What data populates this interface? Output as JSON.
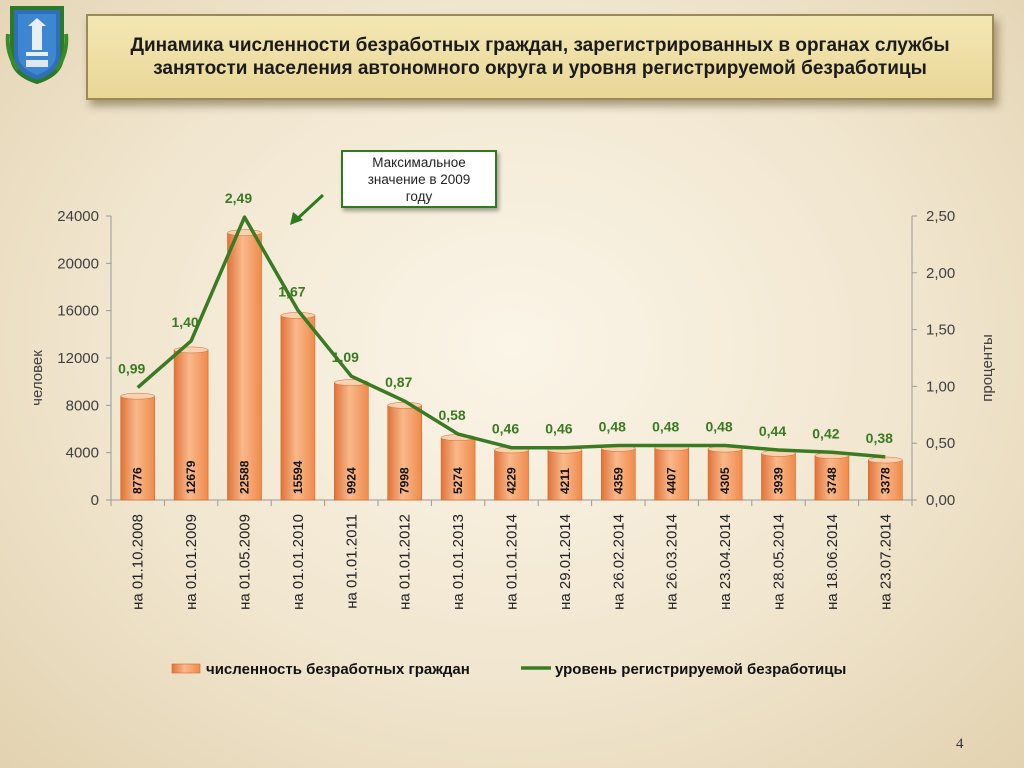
{
  "title": "Динамика численности безработных граждан, зарегистрированных в органах службы занятости населения автономного округа и уровня регистрируемой безработицы",
  "callout": {
    "line1": "Максимальное",
    "line2": "значение в 2009",
    "line3": "году"
  },
  "page_number": "4",
  "colors": {
    "bar": "#f08a4b",
    "bar_top": "#f9b98a",
    "line": "#3a7a22",
    "callout_border": "#2d7a1f"
  },
  "chart_data": {
    "type": "bar",
    "categories": [
      "на 01.10.2008",
      "на 01.01.2009",
      "на 01.05.2009",
      "на 01.01.2010",
      "на 01.01.2011",
      "на 01.01.2012",
      "на 01.01.2013",
      "на 01.01.2014",
      "на 29.01.2014",
      "на 26.02.2014",
      "на 26.03.2014",
      "на 23.04.2014",
      "на 28.05.2014",
      "на 18.06.2014",
      "на 23.07.2014"
    ],
    "series": [
      {
        "name": "численность безработных граждан",
        "type": "bar",
        "axis": "left",
        "values": [
          8776,
          12679,
          22588,
          15594,
          9924,
          7998,
          5274,
          4229,
          4211,
          4359,
          4407,
          4305,
          3939,
          3748,
          3378
        ],
        "labels": [
          "8776",
          "12679",
          "22588",
          "15594",
          "9924",
          "7998",
          "5274",
          "4229",
          "4211",
          "4359",
          "4407",
          "4305",
          "3939",
          "3748",
          "3378"
        ]
      },
      {
        "name": "уровень регистрируемой безработицы",
        "type": "line",
        "axis": "right",
        "values": [
          0.99,
          1.4,
          2.49,
          1.67,
          1.09,
          0.87,
          0.58,
          0.46,
          0.46,
          0.48,
          0.48,
          0.48,
          0.44,
          0.42,
          0.38
        ],
        "labels": [
          "0,99",
          "1,40",
          "2,49",
          "1,67",
          "1,09",
          "0,87",
          "0,58",
          "0,46",
          "0,46",
          "0,48",
          "0,48",
          "0,48",
          "0,44",
          "0,42",
          "0,38"
        ]
      }
    ],
    "ylabel": "человек",
    "y2label": "проценты",
    "ylim": [
      0,
      24000
    ],
    "y2lim": [
      0,
      2.5
    ],
    "yticks": [
      "0",
      "4000",
      "8000",
      "12000",
      "16000",
      "20000",
      "24000"
    ],
    "y2ticks": [
      "0,00",
      "0,50",
      "1,00",
      "1,50",
      "2,00",
      "2,50"
    ],
    "legend": "bottom",
    "grid": false
  }
}
